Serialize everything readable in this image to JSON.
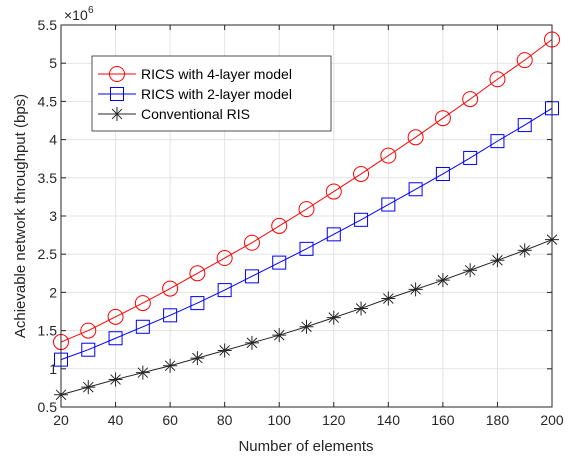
{
  "chart_data": {
    "type": "line",
    "xlabel": "Number of elements",
    "ylabel": "Achievable network throughput (bps)",
    "y_multiplier": {
      "base": "×10",
      "exponent": "6"
    },
    "x": [
      20,
      30,
      40,
      50,
      60,
      70,
      80,
      90,
      100,
      110,
      120,
      130,
      140,
      150,
      160,
      170,
      180,
      190,
      200
    ],
    "xlim": [
      20,
      200
    ],
    "ylim": [
      0.5,
      5.5
    ],
    "xticks": [
      20,
      40,
      60,
      80,
      100,
      120,
      140,
      160,
      180,
      200
    ],
    "yticks": [
      0.5,
      1,
      1.5,
      2,
      2.5,
      3,
      3.5,
      4,
      4.5,
      5,
      5.5
    ],
    "grid": true,
    "legend_position": "top-left",
    "series": [
      {
        "name": "RICS with 4-layer model",
        "color": "#ff0000",
        "marker": "circle",
        "values": [
          1.35,
          1.5,
          1.68,
          1.86,
          2.05,
          2.25,
          2.45,
          2.65,
          2.87,
          3.09,
          3.32,
          3.55,
          3.79,
          4.03,
          4.28,
          4.53,
          4.79,
          5.04,
          5.31
        ]
      },
      {
        "name": "RICS with 2-layer model",
        "color": "#0000ff",
        "marker": "square",
        "values": [
          1.12,
          1.25,
          1.4,
          1.55,
          1.7,
          1.86,
          2.03,
          2.21,
          2.39,
          2.57,
          2.76,
          2.95,
          3.15,
          3.35,
          3.55,
          3.76,
          3.98,
          4.19,
          4.41
        ]
      },
      {
        "name": "Conventional RIS",
        "color": "#262626",
        "marker": "asterisk",
        "values": [
          0.66,
          0.76,
          0.86,
          0.95,
          1.04,
          1.14,
          1.24,
          1.34,
          1.44,
          1.55,
          1.67,
          1.79,
          1.92,
          2.04,
          2.16,
          2.29,
          2.42,
          2.55,
          2.69
        ]
      }
    ]
  }
}
